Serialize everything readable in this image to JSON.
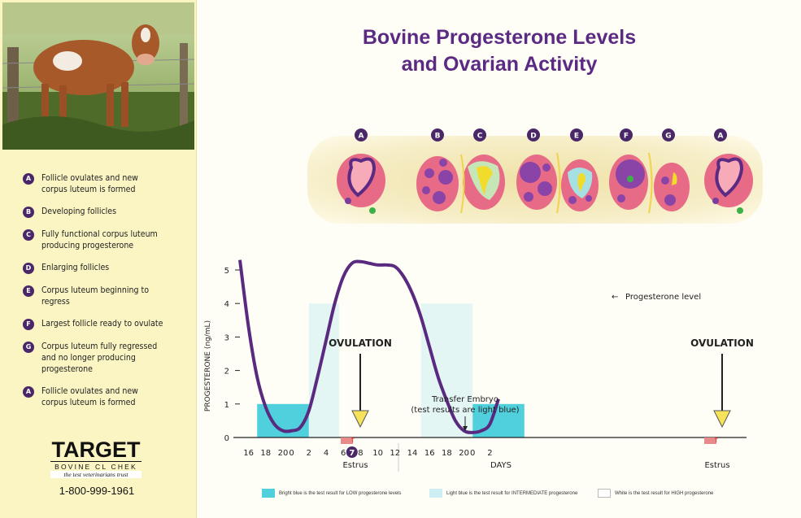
{
  "title_line1": "Bovine Progesterone Levels",
  "title_line2": "and Ovarian Activity",
  "legend_items": [
    {
      "letter": "A",
      "text": "Follicle ovulates and new corpus luteum is formed"
    },
    {
      "letter": "B",
      "text": "Developing follicles"
    },
    {
      "letter": "C",
      "text": "Fully functional corpus luteum producing progesterone"
    },
    {
      "letter": "D",
      "text": "Enlarging follicles"
    },
    {
      "letter": "E",
      "text": "Corpus luteum beginning to regress"
    },
    {
      "letter": "F",
      "text": "Largest follicle ready to ovulate"
    },
    {
      "letter": "G",
      "text": "Corpus luteum fully regressed and no longer producing progesterone"
    },
    {
      "letter": "A",
      "text": "Follicle ovulates and new corpus luteum is formed"
    }
  ],
  "brand": {
    "name": "TARGET",
    "subtitle": "BOVINE CL CHEK",
    "tagline": "the test veterinarians trust",
    "phone": "1-800-999-1961"
  },
  "ovary_letters": [
    "A",
    "B",
    "C",
    "D",
    "E",
    "F",
    "G",
    "A"
  ],
  "colors": {
    "purple": "#4a2768",
    "title": "#5b2a82",
    "bright_blue": "#4fd0dc",
    "light_blue": "#cdeef3",
    "curve": "#5a2a80"
  },
  "chart_data": {
    "type": "line",
    "title": "",
    "ylabel": "PROGESTERONE (ng/mL)",
    "xlabel": "DAYS",
    "ylim": [
      0,
      5
    ],
    "y_ticks": [
      "0",
      "1",
      "2",
      "3",
      "4",
      "5"
    ],
    "x_tick_labels": [
      "16",
      "18",
      "20",
      "0",
      "2",
      "4",
      "6",
      "7",
      "8",
      "10",
      "12",
      "14",
      "16",
      "18",
      "20",
      "0",
      "2"
    ],
    "series": [
      {
        "name": "Progesterone level",
        "x": [
          -6,
          -5,
          -4,
          -3,
          -2,
          -1,
          0,
          1,
          2,
          3,
          4,
          5,
          6,
          7,
          8,
          9,
          10,
          11,
          12,
          13,
          14,
          15,
          16,
          17,
          18,
          19,
          20,
          21,
          22,
          23,
          24
        ],
        "y": [
          5.3,
          3.3,
          1.8,
          0.9,
          0.4,
          0.2,
          0.2,
          0.3,
          0.8,
          1.8,
          2.9,
          4.0,
          4.8,
          5.2,
          5.25,
          5.2,
          5.15,
          5.15,
          5.1,
          4.8,
          4.3,
          3.6,
          2.7,
          1.8,
          1.1,
          0.5,
          0.2,
          0.15,
          0.2,
          0.4,
          1.15
        ]
      }
    ],
    "bright_blue_bands": [
      [
        -4,
        2
      ],
      [
        21,
        27
      ]
    ],
    "light_blue_bands": [
      [
        2,
        5.5
      ],
      [
        15,
        21
      ]
    ],
    "ovulation_label": "OVULATION",
    "estrus_label": "Estrus",
    "transfer_label_line1": "Transfer Embryo",
    "transfer_label_line2": "(test results are light blue)",
    "progesterone_annotation": "Progesterone level",
    "bottom_legend": [
      "Bright blue is the test result for LOW progesterone levels",
      "Light blue is the test result for INTERMEDIATE progesterone",
      "White is the test result for HIGH progesterone"
    ]
  }
}
